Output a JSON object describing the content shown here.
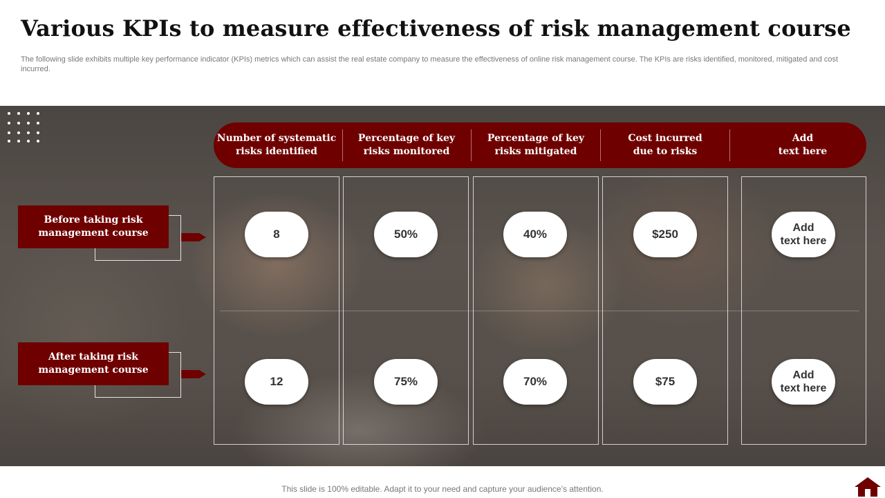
{
  "slide": {
    "title": "Various KPIs to measure effectiveness of risk management course",
    "subtitle": "The following slide exhibits multiple key performance indicator (KPIs) metrics which can assist the real estate company to measure the effectiveness of online risk management course. The KPIs are risks identified, monitored, mitigated and cost incurred.",
    "footer": "This slide is 100% editable. Adapt it to your need and capture your audience’s attention."
  },
  "table": {
    "headers": [
      "Number of systematic\nrisks identified",
      "Percentage of key\nrisks monitored",
      "Percentage of key\nrisks mitigated",
      "Cost incurred\ndue to risks",
      "Add\ntext here"
    ],
    "rows": [
      {
        "label": "Before taking risk\nmanagement course",
        "values": [
          "8",
          "50%",
          "40%",
          "$250",
          "Add\ntext here"
        ]
      },
      {
        "label": "After taking risk\nmanagement course",
        "values": [
          "12",
          "75%",
          "70%",
          "$75",
          "Add\ntext here"
        ]
      }
    ]
  },
  "icons": {
    "decor": "dot-grid-icon",
    "row_arrow": "arrow-right-icon",
    "nav": "home-icon"
  },
  "colors": {
    "accent": "#6f0000",
    "background_band": "#4f4945",
    "pill": "#ffffff"
  }
}
